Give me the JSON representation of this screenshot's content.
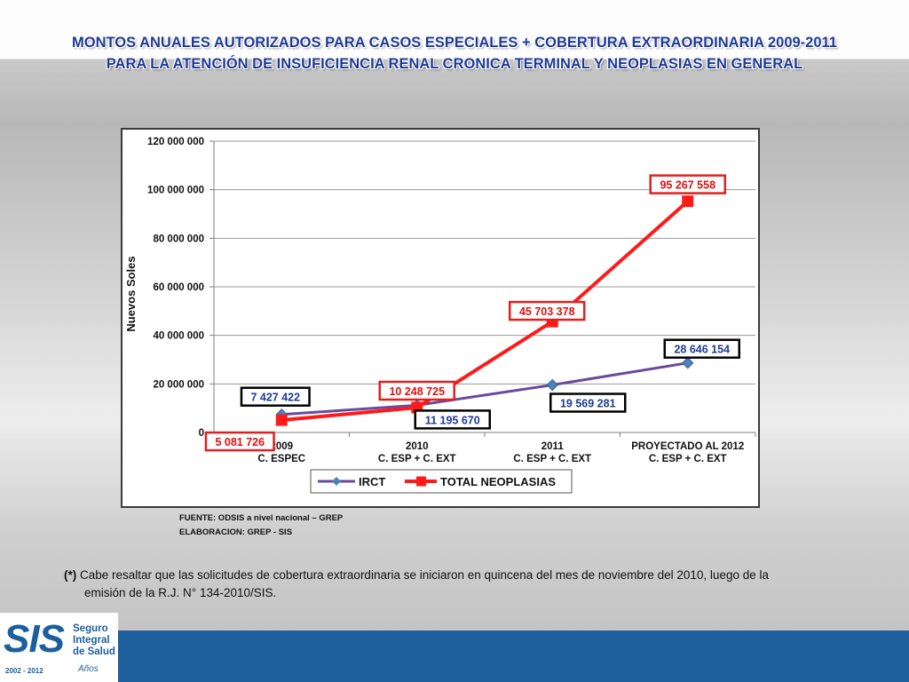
{
  "page": {
    "title_line1": "MONTOS ANUALES AUTORIZADOS PARA CASOS ESPECIALES + COBERTURA EXTRAORDINARIA 2009-2011",
    "title_line2": "PARA LA ATENCIÓN DE INSUFICIENCIA RENAL CRONICA TERMINAL Y NEOPLASIAS EN GENERAL",
    "source": "FUENTE: ODSIS a nivel nacional – GREP",
    "elaboration": "ELABORACION: GREP - SIS",
    "footnote_mark": "(*)",
    "footnote_line1": "Cabe resaltar que las solicitudes de cobertura extraordinaria se iniciaron en quincena del mes de noviembre del 2010, luego de la",
    "footnote_line2": "emisión de la R.J. N° 134-2010/SIS.",
    "logo_text": "SIS",
    "logo_name_1": "Seguro",
    "logo_name_2": "Integral",
    "logo_name_3": "de Salud",
    "logo_years": "2002 - 2012",
    "logo_script": "Años",
    "colors": {
      "title": "#1f3a93",
      "bar": "#1c5f9c"
    }
  },
  "chart_data": {
    "type": "line",
    "ylabel": "Nuevos Soles",
    "ylim": [
      0,
      120000000
    ],
    "yticks": [
      0,
      20000000,
      40000000,
      60000000,
      80000000,
      100000000,
      120000000
    ],
    "ytick_labels": [
      "0",
      "20 000 000",
      "40 000 000",
      "60 000 000",
      "80 000 000",
      "100 000 000",
      "120 000 000"
    ],
    "categories": [
      [
        "2009",
        "C. ESPEC"
      ],
      [
        "2010",
        "C. ESP + C. EXT"
      ],
      [
        "2011",
        "C. ESP + C. EXT"
      ],
      [
        "PROYECTADO AL 2012",
        "C. ESP + C. EXT"
      ]
    ],
    "grid": true,
    "legend": "bottom",
    "series": [
      {
        "name": "IRCT",
        "values": [
          7427422,
          11195670,
          19569281,
          28646154
        ],
        "labels": [
          "7 427 422",
          "11 195 670",
          "19 569 281",
          "28 646 154"
        ],
        "color": "#6a4a9c",
        "marker": "diamond",
        "marker_color": "#4f81bd",
        "label_border": "#000000"
      },
      {
        "name": "TOTAL NEOPLASIAS",
        "values": [
          5081726,
          10248725,
          45703378,
          95267558
        ],
        "labels": [
          "5 081 726",
          "10 248 725",
          "45 703 378",
          "95 267 558"
        ],
        "color": "#ff1a1a",
        "marker": "square",
        "marker_color": "#ff1a1a",
        "label_border": "#e02020"
      }
    ]
  }
}
